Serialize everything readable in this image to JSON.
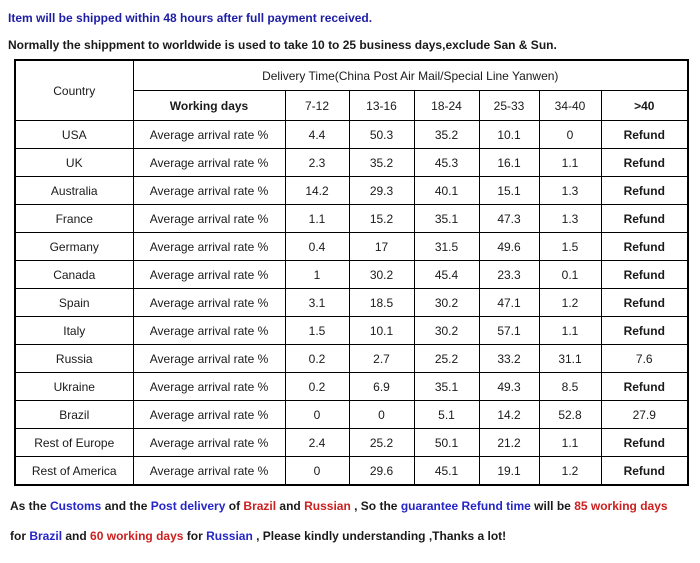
{
  "notes": {
    "line1": "Item will be shipped within 48 hours after full payment received.",
    "line2": "Normally the shippment to worldwide is used to take 10 to 25 business days,exclude San & Sun."
  },
  "table": {
    "country_header": "Country",
    "delivery_header": "Delivery Time(China Post Air Mail/Special Line Yanwen)",
    "working_days_label": "Working days",
    "day_ranges": [
      "7-12",
      "13-16",
      "18-24",
      "25-33",
      "34-40",
      ">40"
    ],
    "row_label": "Average arrival rate %",
    "rows": [
      {
        "country": "USA",
        "values": [
          "4.4",
          "50.3",
          "35.2",
          "10.1",
          "0",
          "Refund"
        ]
      },
      {
        "country": "UK",
        "values": [
          "2.3",
          "35.2",
          "45.3",
          "16.1",
          "1.1",
          "Refund"
        ]
      },
      {
        "country": "Australia",
        "values": [
          "14.2",
          "29.3",
          "40.1",
          "15.1",
          "1.3",
          "Refund"
        ]
      },
      {
        "country": "France",
        "values": [
          "1.1",
          "15.2",
          "35.1",
          "47.3",
          "1.3",
          "Refund"
        ]
      },
      {
        "country": "Germany",
        "values": [
          "0.4",
          "17",
          "31.5",
          "49.6",
          "1.5",
          "Refund"
        ]
      },
      {
        "country": "Canada",
        "values": [
          "1",
          "30.2",
          "45.4",
          "23.3",
          "0.1",
          "Refund"
        ]
      },
      {
        "country": "Spain",
        "values": [
          "3.1",
          "18.5",
          "30.2",
          "47.1",
          "1.2",
          "Refund"
        ]
      },
      {
        "country": "Italy",
        "values": [
          "1.5",
          "10.1",
          "30.2",
          "57.1",
          "1.1",
          "Refund"
        ]
      },
      {
        "country": "Russia",
        "values": [
          "0.2",
          "2.7",
          "25.2",
          "33.2",
          "31.1",
          "7.6"
        ]
      },
      {
        "country": "Ukraine",
        "values": [
          "0.2",
          "6.9",
          "35.1",
          "49.3",
          "8.5",
          "Refund"
        ]
      },
      {
        "country": "Brazil",
        "values": [
          "0",
          "0",
          "5.1",
          "14.2",
          "52.8",
          "27.9"
        ]
      },
      {
        "country": "Rest of Europe",
        "values": [
          "2.4",
          "25.2",
          "50.1",
          "21.2",
          "1.1",
          "Refund"
        ]
      },
      {
        "country": "Rest of America",
        "values": [
          "0",
          "29.6",
          "45.1",
          "19.1",
          "1.2",
          "Refund"
        ]
      }
    ]
  },
  "footer": {
    "line1": [
      {
        "text": "As the ",
        "color": "black"
      },
      {
        "text": "Customs",
        "color": "blue"
      },
      {
        "text": " and the ",
        "color": "black"
      },
      {
        "text": "Post delivery",
        "color": "blue"
      },
      {
        "text": " of ",
        "color": "black"
      },
      {
        "text": "Brazil",
        "color": "red"
      },
      {
        "text": " and ",
        "color": "black"
      },
      {
        "text": "Russian",
        "color": "red"
      },
      {
        "text": " , So the ",
        "color": "black"
      },
      {
        "text": "guarantee Refund time",
        "color": "blue"
      },
      {
        "text": " will be ",
        "color": "black"
      },
      {
        "text": "85 working days",
        "color": "red"
      }
    ],
    "line2": [
      {
        "text": "for ",
        "color": "black"
      },
      {
        "text": "Brazil",
        "color": "blue"
      },
      {
        "text": " and ",
        "color": "black"
      },
      {
        "text": "60 working days",
        "color": "red"
      },
      {
        "text": " for ",
        "color": "black"
      },
      {
        "text": "Russian",
        "color": "blue"
      },
      {
        "text": " , Please kindly understanding ,Thanks a lot!",
        "color": "black"
      }
    ]
  },
  "colors": {
    "heading_blue": "#1d1da6",
    "accent_blue": "#2525c8",
    "red": "#cc1f1f",
    "text": "#1a1a1a",
    "border": "#000000"
  }
}
